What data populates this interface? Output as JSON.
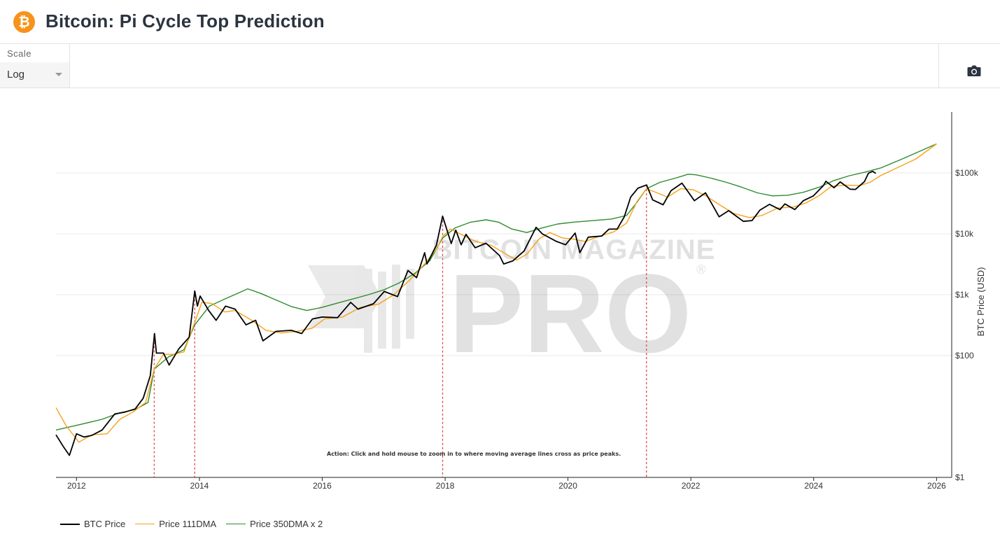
{
  "header": {
    "title": "Bitcoin: Pi Cycle Top Prediction",
    "logo_icon": "bitcoin-logo-icon",
    "logo_glyph": "₿"
  },
  "toolbar": {
    "scale_label": "Scale",
    "scale_value": "Log",
    "camera_icon": "camera-icon"
  },
  "colors": {
    "btc_price": "#000000",
    "dma111": "#f7a21a",
    "dma350x2": "#2e8b2e",
    "cross_lines": "#e04848"
  },
  "watermark": {
    "line1": "BITCOIN MAGAZINE",
    "line2": "PRO",
    "registered": "®"
  },
  "chart_data": {
    "type": "line",
    "title": "Bitcoin: Pi Cycle Top Prediction",
    "ylabel": "BTC Price (USD)",
    "yscale": "log",
    "ylim": [
      1,
      1000000
    ],
    "x_ticks": [
      "2012",
      "2014",
      "2016",
      "2018",
      "2020",
      "2022",
      "2024",
      "2026"
    ],
    "y_ticks": [
      {
        "value": 1,
        "label": "$1"
      },
      {
        "value": 100,
        "label": "$100"
      },
      {
        "value": 1000,
        "label": "$1k"
      },
      {
        "value": 10000,
        "label": "$10k"
      },
      {
        "value": 100000,
        "label": "$100k"
      }
    ],
    "y_axis_position": "right",
    "grid": true,
    "legend_position": "bottom-left",
    "annotation": "Action: Click and hold mouse to zoom in to where moving average lines cross as price peaks.",
    "cross_markers": [
      "2013-04-07",
      "2013-12-04",
      "2017-12-17",
      "2021-04-12"
    ],
    "series": [
      {
        "name": "BTC Price",
        "points": [
          [
            "2011-09-01",
            5.0
          ],
          [
            "2011-10-15",
            3.2
          ],
          [
            "2011-11-20",
            2.3
          ],
          [
            "2012-01-01",
            5.2
          ],
          [
            "2012-02-15",
            4.6
          ],
          [
            "2012-04-01",
            4.9
          ],
          [
            "2012-06-01",
            6.0
          ],
          [
            "2012-08-15",
            11.0
          ],
          [
            "2012-10-15",
            11.8
          ],
          [
            "2012-12-15",
            13.3
          ],
          [
            "2013-02-01",
            20.0
          ],
          [
            "2013-03-15",
            47.0
          ],
          [
            "2013-04-09",
            230
          ],
          [
            "2013-04-20",
            110
          ],
          [
            "2013-06-01",
            110
          ],
          [
            "2013-07-05",
            70
          ],
          [
            "2013-09-01",
            130
          ],
          [
            "2013-11-01",
            200
          ],
          [
            "2013-12-04",
            1150
          ],
          [
            "2013-12-20",
            650
          ],
          [
            "2014-01-05",
            950
          ],
          [
            "2014-02-25",
            550
          ],
          [
            "2014-04-10",
            380
          ],
          [
            "2014-06-05",
            650
          ],
          [
            "2014-08-01",
            580
          ],
          [
            "2014-10-05",
            320
          ],
          [
            "2014-12-01",
            380
          ],
          [
            "2015-01-14",
            175
          ],
          [
            "2015-04-01",
            250
          ],
          [
            "2015-07-01",
            260
          ],
          [
            "2015-09-01",
            230
          ],
          [
            "2015-11-04",
            400
          ],
          [
            "2016-01-01",
            430
          ],
          [
            "2016-04-01",
            420
          ],
          [
            "2016-06-18",
            750
          ],
          [
            "2016-08-01",
            580
          ],
          [
            "2016-11-01",
            710
          ],
          [
            "2017-01-04",
            1130
          ],
          [
            "2017-03-24",
            930
          ],
          [
            "2017-05-25",
            2500
          ],
          [
            "2017-07-15",
            1900
          ],
          [
            "2017-09-01",
            4900
          ],
          [
            "2017-09-15",
            3200
          ],
          [
            "2017-11-10",
            6500
          ],
          [
            "2017-12-17",
            19500
          ],
          [
            "2018-02-06",
            6900
          ],
          [
            "2018-03-05",
            11500
          ],
          [
            "2018-04-06",
            6600
          ],
          [
            "2018-05-05",
            9800
          ],
          [
            "2018-06-28",
            5900
          ],
          [
            "2018-09-01",
            7000
          ],
          [
            "2018-11-20",
            4400
          ],
          [
            "2018-12-15",
            3200
          ],
          [
            "2019-02-08",
            3600
          ],
          [
            "2019-04-15",
            5200
          ],
          [
            "2019-06-26",
            12800
          ],
          [
            "2019-08-01",
            10000
          ],
          [
            "2019-10-25",
            7500
          ],
          [
            "2019-12-18",
            6600
          ],
          [
            "2020-02-13",
            10300
          ],
          [
            "2020-03-12",
            4900
          ],
          [
            "2020-05-01",
            8800
          ],
          [
            "2020-07-20",
            9200
          ],
          [
            "2020-09-01",
            11900
          ],
          [
            "2020-10-20",
            12000
          ],
          [
            "2020-12-01",
            19000
          ],
          [
            "2021-01-08",
            40000
          ],
          [
            "2021-02-20",
            56000
          ],
          [
            "2021-04-13",
            63500
          ],
          [
            "2021-05-19",
            36000
          ],
          [
            "2021-07-20",
            30000
          ],
          [
            "2021-09-05",
            51000
          ],
          [
            "2021-11-09",
            68000
          ],
          [
            "2022-01-22",
            35000
          ],
          [
            "2022-03-29",
            47000
          ],
          [
            "2022-05-12",
            29000
          ],
          [
            "2022-06-18",
            19000
          ],
          [
            "2022-08-14",
            24000
          ],
          [
            "2022-11-09",
            16000
          ],
          [
            "2022-12-31",
            16500
          ],
          [
            "2023-02-16",
            24500
          ],
          [
            "2023-04-14",
            30500
          ],
          [
            "2023-06-15",
            25000
          ],
          [
            "2023-07-14",
            31000
          ],
          [
            "2023-09-11",
            25000
          ],
          [
            "2023-11-01",
            35000
          ],
          [
            "2023-12-31",
            42000
          ],
          [
            "2024-02-28",
            62000
          ],
          [
            "2024-03-14",
            73000
          ],
          [
            "2024-05-01",
            57000
          ],
          [
            "2024-06-07",
            71000
          ],
          [
            "2024-08-05",
            54000
          ],
          [
            "2024-09-06",
            53500
          ],
          [
            "2024-10-29",
            72000
          ],
          [
            "2024-11-22",
            99000
          ],
          [
            "2024-12-17",
            106000
          ],
          [
            "2025-01-05",
            98000
          ]
        ]
      },
      {
        "name": "Price 111DMA",
        "points": [
          [
            "2011-09-01",
            14.0
          ],
          [
            "2011-11-01",
            7.0
          ],
          [
            "2012-01-15",
            3.8
          ],
          [
            "2012-04-01",
            5.0
          ],
          [
            "2012-07-01",
            5.2
          ],
          [
            "2012-09-15",
            9.0
          ],
          [
            "2012-12-01",
            11.8
          ],
          [
            "2013-02-15",
            17.0
          ],
          [
            "2013-04-07",
            60
          ],
          [
            "2013-06-01",
            105
          ],
          [
            "2013-08-01",
            105
          ],
          [
            "2013-10-01",
            115
          ],
          [
            "2013-12-04",
            350
          ],
          [
            "2014-01-15",
            750
          ],
          [
            "2014-03-15",
            720
          ],
          [
            "2014-06-01",
            520
          ],
          [
            "2014-08-01",
            550
          ],
          [
            "2014-11-01",
            390
          ],
          [
            "2015-02-01",
            260
          ],
          [
            "2015-05-01",
            235
          ],
          [
            "2015-08-01",
            250
          ],
          [
            "2015-11-01",
            280
          ],
          [
            "2016-01-15",
            400
          ],
          [
            "2016-05-01",
            430
          ],
          [
            "2016-08-15",
            620
          ],
          [
            "2016-12-01",
            700
          ],
          [
            "2017-03-01",
            1000
          ],
          [
            "2017-06-01",
            1700
          ],
          [
            "2017-09-01",
            3200
          ],
          [
            "2017-11-15",
            5800
          ],
          [
            "2017-12-17",
            9000
          ],
          [
            "2018-02-01",
            12000
          ],
          [
            "2018-04-15",
            9500
          ],
          [
            "2018-07-01",
            7500
          ],
          [
            "2018-10-01",
            6500
          ],
          [
            "2018-12-20",
            4800
          ],
          [
            "2019-03-01",
            3700
          ],
          [
            "2019-05-01",
            4600
          ],
          [
            "2019-07-15",
            8300
          ],
          [
            "2019-09-15",
            10500
          ],
          [
            "2019-12-01",
            8500
          ],
          [
            "2020-02-01",
            8200
          ],
          [
            "2020-04-15",
            7500
          ],
          [
            "2020-07-01",
            9000
          ],
          [
            "2020-10-01",
            10800
          ],
          [
            "2020-12-15",
            15000
          ],
          [
            "2021-02-15",
            34000
          ],
          [
            "2021-04-12",
            55000
          ],
          [
            "2021-06-15",
            47000
          ],
          [
            "2021-08-15",
            40000
          ],
          [
            "2021-11-01",
            55000
          ],
          [
            "2022-01-15",
            53000
          ],
          [
            "2022-04-01",
            42000
          ],
          [
            "2022-06-20",
            30000
          ],
          [
            "2022-09-15",
            21500
          ],
          [
            "2022-12-15",
            18500
          ],
          [
            "2023-03-01",
            20000
          ],
          [
            "2023-06-01",
            26500
          ],
          [
            "2023-09-01",
            27500
          ],
          [
            "2023-11-15",
            32000
          ],
          [
            "2024-02-01",
            42000
          ],
          [
            "2024-04-15",
            60000
          ],
          [
            "2024-07-01",
            63000
          ],
          [
            "2024-10-01",
            62000
          ],
          [
            "2024-12-01",
            70000
          ],
          [
            "2025-02-01",
            90000
          ],
          [
            "2025-09-01",
            170000
          ],
          [
            "2026-01-01",
            300000
          ]
        ]
      },
      {
        "name": "Price 350DMA x 2",
        "points": [
          [
            "2011-09-01",
            6.0
          ],
          [
            "2012-02-01",
            7.5
          ],
          [
            "2012-06-01",
            9.0
          ],
          [
            "2012-09-15",
            11.5
          ],
          [
            "2012-12-15",
            13.0
          ],
          [
            "2013-03-01",
            17.0
          ],
          [
            "2013-04-07",
            60
          ],
          [
            "2013-07-01",
            95
          ],
          [
            "2013-10-01",
            125
          ],
          [
            "2013-12-04",
            320
          ],
          [
            "2014-03-01",
            650
          ],
          [
            "2014-06-01",
            850
          ],
          [
            "2014-09-01",
            1100
          ],
          [
            "2014-10-15",
            1250
          ],
          [
            "2015-01-01",
            1050
          ],
          [
            "2015-04-01",
            820
          ],
          [
            "2015-07-01",
            640
          ],
          [
            "2015-10-01",
            550
          ],
          [
            "2016-01-01",
            620
          ],
          [
            "2016-04-01",
            730
          ],
          [
            "2016-07-01",
            850
          ],
          [
            "2016-10-01",
            1000
          ],
          [
            "2017-01-01",
            1200
          ],
          [
            "2017-04-01",
            1550
          ],
          [
            "2017-07-01",
            2200
          ],
          [
            "2017-10-01",
            3600
          ],
          [
            "2017-12-17",
            8500
          ],
          [
            "2018-03-01",
            12500
          ],
          [
            "2018-06-01",
            15500
          ],
          [
            "2018-09-01",
            17000
          ],
          [
            "2018-11-15",
            15500
          ],
          [
            "2019-02-01",
            12000
          ],
          [
            "2019-05-01",
            10500
          ],
          [
            "2019-08-01",
            12500
          ],
          [
            "2019-11-01",
            14500
          ],
          [
            "2020-02-01",
            15500
          ],
          [
            "2020-06-01",
            16500
          ],
          [
            "2020-09-15",
            17500
          ],
          [
            "2020-12-15",
            20000
          ],
          [
            "2021-02-15",
            33000
          ],
          [
            "2021-04-12",
            55000
          ],
          [
            "2021-07-01",
            70000
          ],
          [
            "2021-10-01",
            82000
          ],
          [
            "2021-12-15",
            95000
          ],
          [
            "2022-02-01",
            93000
          ],
          [
            "2022-05-01",
            82000
          ],
          [
            "2022-08-01",
            70000
          ],
          [
            "2022-11-01",
            58000
          ],
          [
            "2023-02-01",
            47000
          ],
          [
            "2023-05-01",
            42000
          ],
          [
            "2023-08-01",
            43000
          ],
          [
            "2023-11-01",
            48000
          ],
          [
            "2024-02-01",
            58000
          ],
          [
            "2024-05-01",
            75000
          ],
          [
            "2024-08-01",
            90000
          ],
          [
            "2024-11-01",
            103000
          ],
          [
            "2025-02-01",
            120000
          ],
          [
            "2025-06-01",
            165000
          ],
          [
            "2026-01-01",
            300000
          ]
        ]
      }
    ]
  }
}
